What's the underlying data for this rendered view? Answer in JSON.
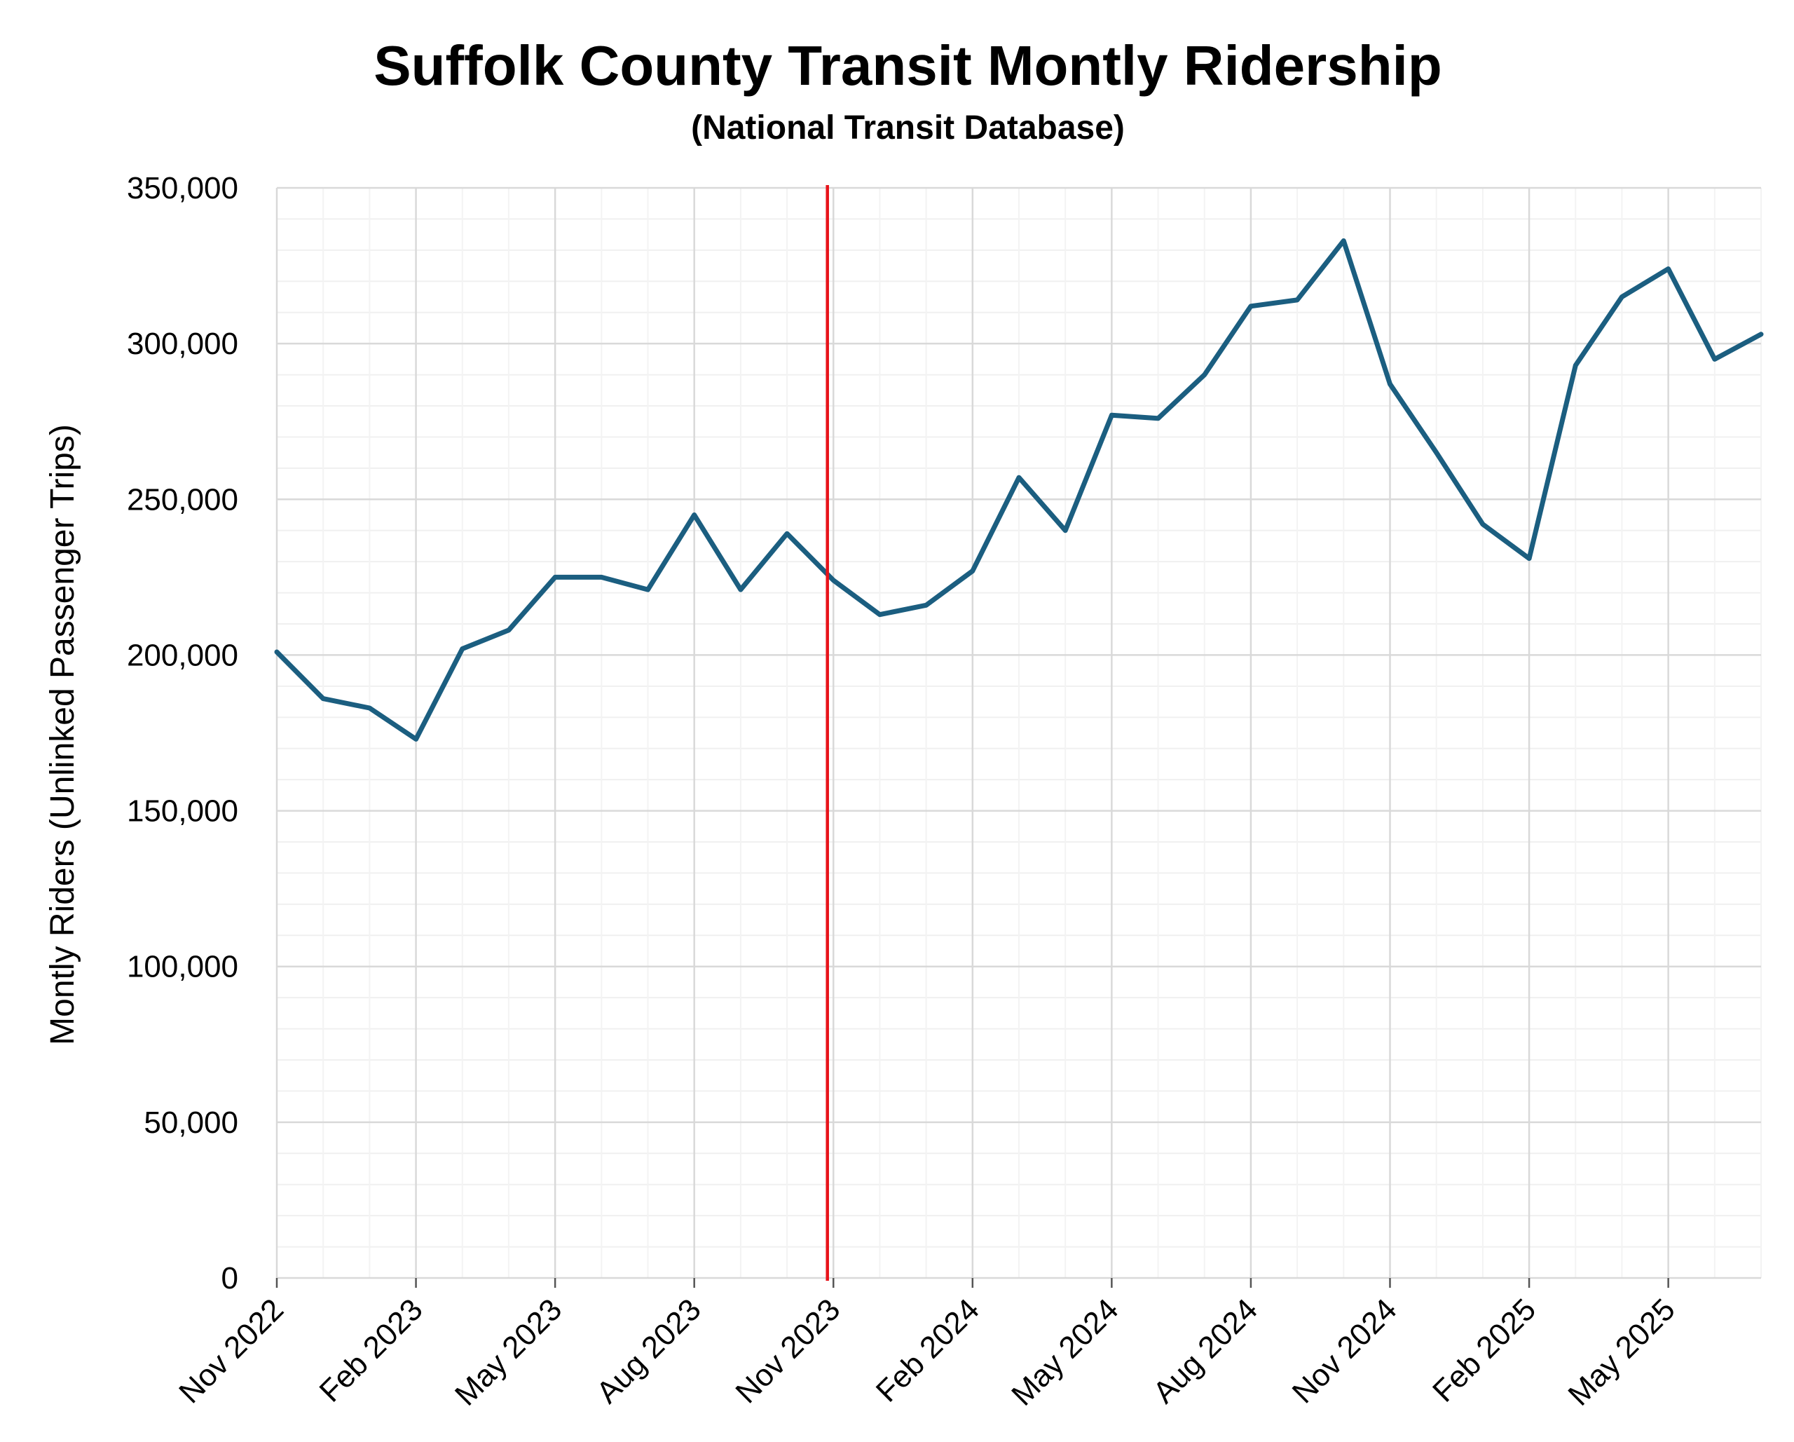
{
  "chart_data": {
    "type": "line",
    "title": "Suffolk County Transit Montly Ridership",
    "subtitle": "(National Transit Database)",
    "xlabel": "",
    "ylabel": "Montly Riders (Unlinked Passenger Trips)",
    "ylim": [
      0,
      350000
    ],
    "xlim": [
      "2022-11",
      "2025-07"
    ],
    "grid": true,
    "y_ticks": [
      0,
      50000,
      100000,
      150000,
      200000,
      250000,
      300000,
      350000
    ],
    "y_tick_labels": [
      "0",
      "50,000",
      "100,000",
      "150,000",
      "200,000",
      "250,000",
      "300,000",
      "350,000"
    ],
    "x_ticks": [
      "2022-11",
      "2023-02",
      "2023-05",
      "2023-08",
      "2023-11",
      "2024-02",
      "2024-05",
      "2024-08",
      "2024-11",
      "2025-02",
      "2025-05"
    ],
    "x_tick_labels": [
      "Nov 2022",
      "Feb 2023",
      "May 2023",
      "Aug 2023",
      "Nov 2023",
      "Feb 2024",
      "May 2024",
      "Aug 2024",
      "Nov 2024",
      "Feb 2025",
      "May 2025"
    ],
    "series": [
      {
        "color": "#1b5e80",
        "x": [
          "2022-11",
          "2022-12",
          "2023-01",
          "2023-02",
          "2023-03",
          "2023-04",
          "2023-05",
          "2023-06",
          "2023-07",
          "2023-08",
          "2023-09",
          "2023-10",
          "2023-11",
          "2023-12",
          "2024-01",
          "2024-02",
          "2024-03",
          "2024-04",
          "2024-05",
          "2024-06",
          "2024-07",
          "2024-08",
          "2024-09",
          "2024-10",
          "2024-11",
          "2024-12",
          "2025-01",
          "2025-02",
          "2025-03",
          "2025-04",
          "2025-05",
          "2025-06",
          "2025-07"
        ],
        "y": [
          201000,
          186000,
          183000,
          173000,
          202000,
          208000,
          225000,
          225000,
          221000,
          245000,
          221000,
          239000,
          224000,
          213000,
          216000,
          227000,
          257000,
          240000,
          277000,
          276000,
          290000,
          312000,
          314000,
          333000,
          287000,
          265000,
          242000,
          231000,
          293000,
          315000,
          324000,
          295000,
          303000
        ]
      }
    ],
    "vline": {
      "x": "2023-10-28",
      "color": "#e8131a"
    }
  }
}
